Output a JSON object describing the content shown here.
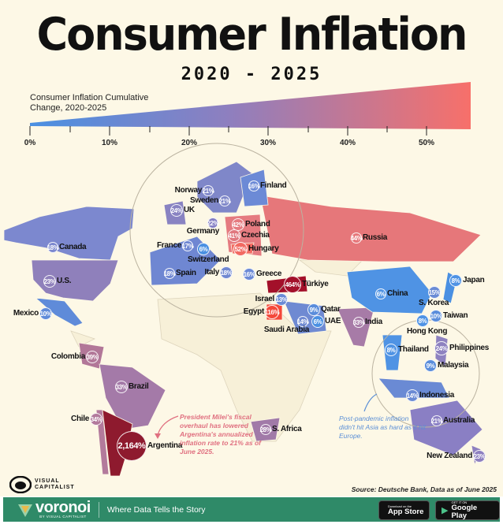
{
  "title": "Consumer Inflation",
  "subtitle": "2020 - 2025",
  "legend": {
    "title": "Consumer Inflation Cumulative Change, 2020-2025",
    "ticks": [
      "0%",
      "10%",
      "20%",
      "30%",
      "40%",
      "50%"
    ],
    "colors": {
      "low": "#4a90e2",
      "mid": "#8e7fbf",
      "high": "#f7706a"
    }
  },
  "countries": [
    {
      "name": "Canada",
      "value": "18%"
    },
    {
      "name": "U.S.",
      "value": "23%"
    },
    {
      "name": "Mexico",
      "value": "10%"
    },
    {
      "name": "Colombia",
      "value": "39%"
    },
    {
      "name": "Brazil",
      "value": "33%"
    },
    {
      "name": "Chile",
      "value": "34%"
    },
    {
      "name": "Argentina",
      "value": "2,164%"
    },
    {
      "name": "Norway",
      "value": "21%"
    },
    {
      "name": "Sweden",
      "value": "21%"
    },
    {
      "name": "Finland",
      "value": "16%"
    },
    {
      "name": "UK",
      "value": "24%"
    },
    {
      "name": "Germany",
      "value": "22%"
    },
    {
      "name": "Poland",
      "value": "42%"
    },
    {
      "name": "Czechia",
      "value": "41%"
    },
    {
      "name": "Hungary",
      "value": "52%"
    },
    {
      "name": "France",
      "value": "17%"
    },
    {
      "name": "Switzerland",
      "value": "6%"
    },
    {
      "name": "Spain",
      "value": "18%"
    },
    {
      "name": "Italy",
      "value": "18%"
    },
    {
      "name": "Greece",
      "value": "16%"
    },
    {
      "name": "Russia",
      "value": "44%"
    },
    {
      "name": "Türkiye",
      "value": "464%"
    },
    {
      "name": "Israel",
      "value": "13%"
    },
    {
      "name": "Egypt",
      "value": "116%"
    },
    {
      "name": "Saudi Arabia",
      "value": "14%"
    },
    {
      "name": "Qatar",
      "value": "9%"
    },
    {
      "name": "UAE",
      "value": "6%"
    },
    {
      "name": "India",
      "value": "33%"
    },
    {
      "name": "China",
      "value": "6%"
    },
    {
      "name": "Japan",
      "value": "8%"
    },
    {
      "name": "S. Korea",
      "value": "15%"
    },
    {
      "name": "Taiwan",
      "value": "10%"
    },
    {
      "name": "Hong Kong",
      "value": "8%"
    },
    {
      "name": "Thailand",
      "value": "8%"
    },
    {
      "name": "Philippines",
      "value": "24%"
    },
    {
      "name": "Malaysia",
      "value": "9%"
    },
    {
      "name": "Indonesia",
      "value": "14%"
    },
    {
      "name": "Australia",
      "value": "21%"
    },
    {
      "name": "New Zealand",
      "value": "23%"
    },
    {
      "name": "S. Africa",
      "value": "28%"
    }
  ],
  "annotations": {
    "argentina": "President Milei's fiscal overhaul has lowered Argentina's annualized inflation rate to 21% as of June 2025.",
    "asia": "Post-pandemic inflation didn't hit Asia as hard as it hit Europe."
  },
  "branding": {
    "visual_capitalist": "VISUAL CAPITALIST",
    "source": "Source: Deutsche Bank, Data as of June 2025",
    "voronoi": "voronoi",
    "voronoi_sub": "BY VISUAL CAPITALIST",
    "tagline": "Where Data Tells the Story",
    "app_store_small": "Download on the",
    "app_store": "App Store",
    "google_play_small": "GET IT ON",
    "google_play": "Google Play"
  }
}
